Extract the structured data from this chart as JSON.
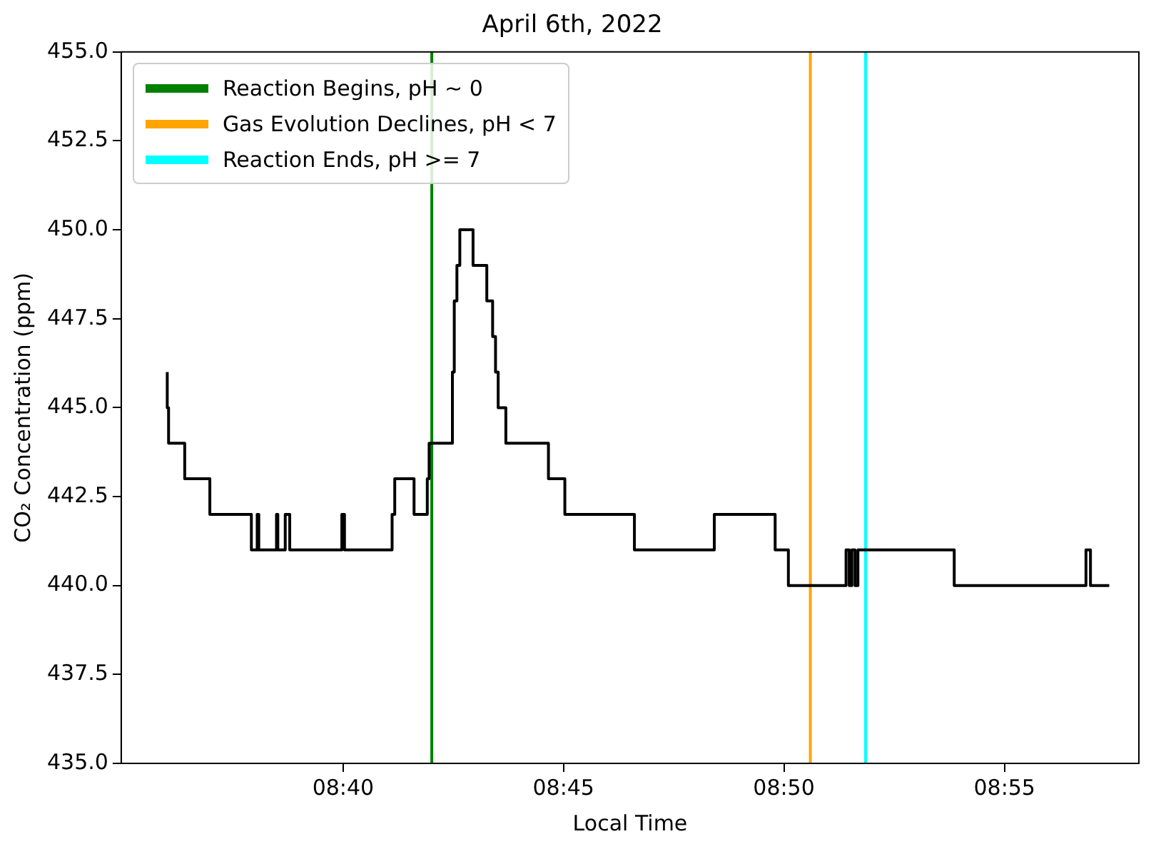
{
  "chart_data": {
    "type": "step",
    "title": "April 6th, 2022",
    "xlabel": "Local Time",
    "ylabel": "CO₂ Concentration (ppm)",
    "x": [
      8.6002,
      8.6007,
      8.6068,
      8.6163,
      8.632,
      8.6342,
      8.6348,
      8.6415,
      8.642,
      8.6448,
      8.6465,
      8.6662,
      8.6672,
      8.6852,
      8.6862,
      8.6935,
      8.6985,
      8.6992,
      8.708,
      8.7087,
      8.7097,
      8.7108,
      8.7158,
      8.721,
      8.7232,
      8.7243,
      8.7253,
      8.7282,
      8.7443,
      8.7505,
      8.7768,
      8.807,
      8.83,
      8.835,
      8.8568,
      8.858,
      8.859,
      8.8602,
      8.8613,
      8.8977,
      8.9475,
      8.9492,
      8.9513,
      8.9563
    ],
    "series": [
      {
        "color": "#000000",
        "values": [
          446,
          445,
          444,
          443,
          442,
          441,
          442,
          441,
          442,
          441,
          442,
          441,
          442,
          441,
          442,
          443,
          442,
          443,
          444,
          446,
          448,
          449,
          450,
          449,
          448,
          447,
          446,
          445,
          444,
          443,
          442,
          441,
          442,
          441,
          440,
          441,
          440,
          441,
          440,
          441,
          440,
          441,
          440,
          440
        ]
      },
      {
        "type": "line",
        "name": "Reaction Begins, pH ~ 0",
        "color": "#008000",
        "x": [
          8.7002,
          8.7002
        ],
        "values": [
          435,
          455
        ]
      },
      {
        "type": "line",
        "name": "Gas Evolution Declines, pH < 7",
        "color": "#ffa500",
        "x": [
          8.8433,
          8.8433
        ],
        "values": [
          435,
          455
        ]
      },
      {
        "type": "line",
        "name": "Reaction Ends, pH >= 7",
        "color": "#00ffff",
        "x": [
          8.8642,
          8.8642
        ],
        "values": [
          435,
          455
        ]
      }
    ],
    "xlim": [
      8.5828,
      8.9675
    ],
    "xticks": [
      {
        "value": 8.6667,
        "label": "08:40"
      },
      {
        "value": 8.75,
        "label": "08:45"
      },
      {
        "value": 8.8333,
        "label": "08:50"
      },
      {
        "value": 8.9167,
        "label": "08:55"
      }
    ],
    "ylim": [
      435,
      455
    ],
    "yticks": [
      {
        "value": 435,
        "label": "435.0"
      },
      {
        "value": 437.5,
        "label": "437.5"
      },
      {
        "value": 440,
        "label": "440.0"
      },
      {
        "value": 442.5,
        "label": "442.5"
      },
      {
        "value": 445,
        "label": "445.0"
      },
      {
        "value": 447.5,
        "label": "447.5"
      },
      {
        "value": 450,
        "label": "450.0"
      },
      {
        "value": 452.5,
        "label": "452.5"
      },
      {
        "value": 455,
        "label": "455.0"
      }
    ],
    "legend": "top left",
    "grid": false,
    "marker": "none",
    "line_style": "solid"
  }
}
